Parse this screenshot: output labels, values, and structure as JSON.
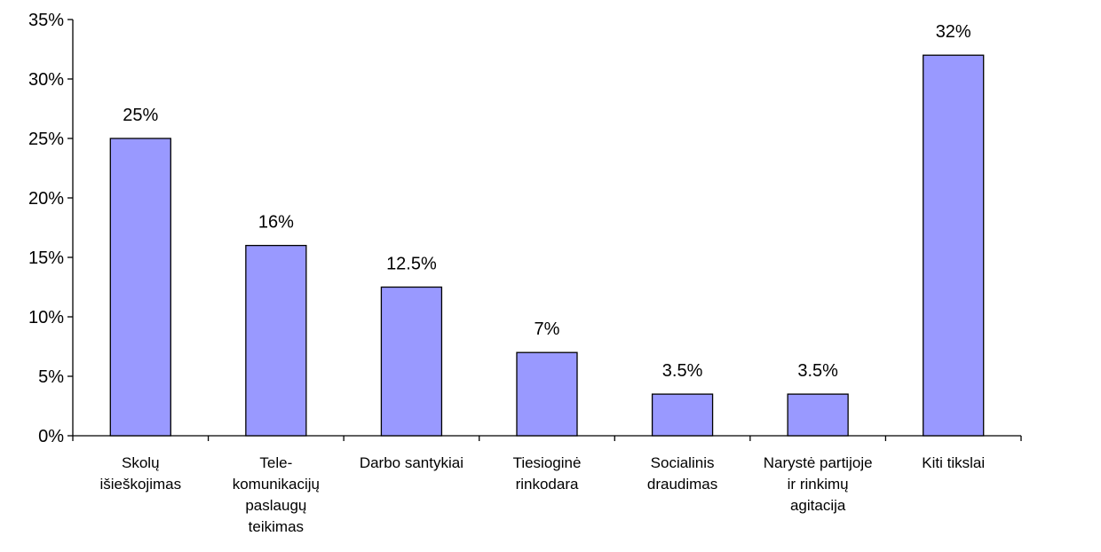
{
  "chart_data": {
    "type": "bar",
    "title": "",
    "xlabel": "",
    "ylabel": "",
    "ylim": [
      0,
      35
    ],
    "yticks": [
      0,
      5,
      10,
      15,
      20,
      25,
      30,
      35
    ],
    "ytick_labels": [
      "0%",
      "5%",
      "10%",
      "15%",
      "20%",
      "25%",
      "30%",
      "35%"
    ],
    "grid": false,
    "legend": "none",
    "bar_color": "#9999FF",
    "categories": [
      [
        "Skolų",
        "išieškojimas"
      ],
      [
        "Tele-",
        "komunikacijų",
        "paslaugų",
        "teikimas"
      ],
      [
        "Darbo santykiai"
      ],
      [
        "Tiesioginė",
        "rinkodara"
      ],
      [
        "Socialinis",
        "draudimas"
      ],
      [
        "Narystė partijoje",
        "ir rinkimų",
        "agitacija"
      ],
      [
        "Kiti tikslai"
      ]
    ],
    "values": [
      25,
      16,
      12.5,
      7,
      3.5,
      3.5,
      32
    ],
    "data_labels": [
      "25%",
      "16%",
      "12.5%",
      "7%",
      "3.5%",
      "3.5%",
      "32%"
    ]
  }
}
